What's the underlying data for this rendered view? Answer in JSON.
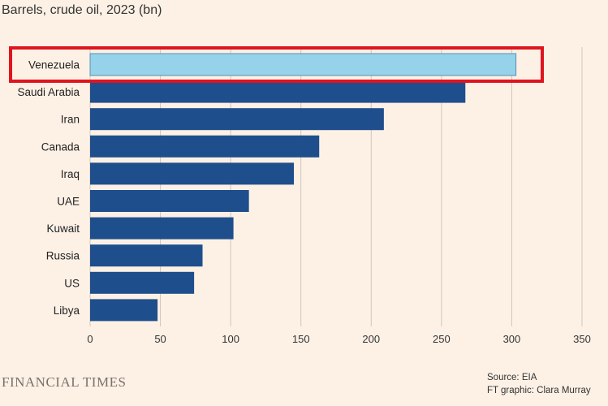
{
  "chart_data": {
    "type": "bar",
    "orientation": "horizontal",
    "title": "Barrels, crude oil, 2023 (bn)",
    "categories": [
      "Venezuela",
      "Saudi Arabia",
      "Iran",
      "Canada",
      "Iraq",
      "UAE",
      "Kuwait",
      "Russia",
      "US",
      "Libya"
    ],
    "values": [
      303,
      267,
      209,
      163,
      145,
      113,
      102,
      80,
      74,
      48
    ],
    "highlight": "Venezuela",
    "xlim": [
      0,
      350
    ],
    "xticks": [
      0,
      50,
      100,
      150,
      200,
      250,
      300,
      350
    ],
    "grid": "vertical",
    "colors": {
      "bar": "#1f4e8c",
      "highlight_bar": "#96d3ea",
      "highlight_box": "#e0141e",
      "grid": "#cfc6bc",
      "background": "#fdf1e6"
    }
  },
  "footer": {
    "brand": "FINANCIAL TIMES",
    "source": "Source: EIA",
    "credit": "FT graphic: Clara Murray"
  }
}
